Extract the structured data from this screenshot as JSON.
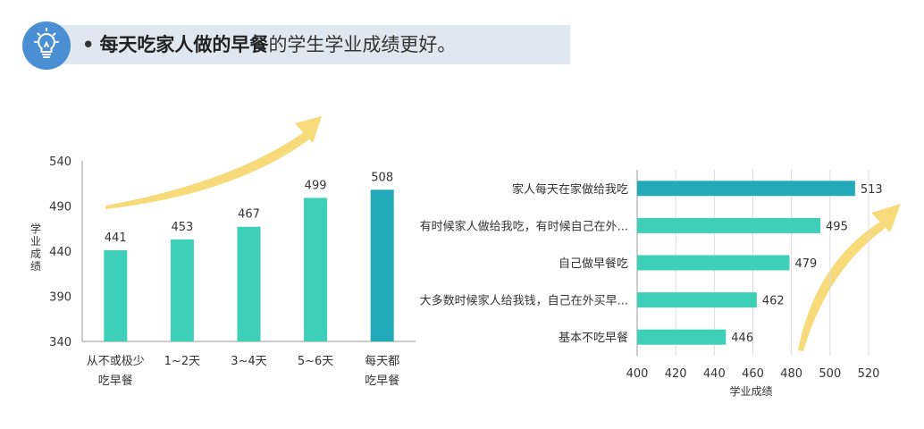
{
  "header": {
    "bullet": "•",
    "emphasis": "每天吃家人做的早餐",
    "rest": "的学生学业成绩更好。",
    "icon": "lightbulb-icon"
  },
  "colors": {
    "bar": "#3ecfb9",
    "bar_highlight": "#22aab8",
    "arrow": "#f6d66c",
    "banner": "#dfe8f1",
    "icon_circle": "#4a8fd4"
  },
  "chart_data": [
    {
      "type": "bar",
      "orientation": "vertical",
      "categories": [
        [
          "从不或极少",
          "吃早餐"
        ],
        [
          "1~2天"
        ],
        [
          "3~4天"
        ],
        [
          "5~6天"
        ],
        [
          "每天都",
          "吃早餐"
        ]
      ],
      "values": [
        441,
        453,
        467,
        499,
        508
      ],
      "highlight_index": 4,
      "ylabel": "学业成绩",
      "ylim": [
        340,
        540
      ],
      "yticks": [
        540,
        490,
        440,
        390,
        340
      ],
      "grid": false
    },
    {
      "type": "bar",
      "orientation": "horizontal",
      "categories": [
        "家人每天在家做给我吃",
        "有时候家人做给我吃，有时候自己在外...",
        "自己做早餐吃",
        "大多数时候家人给我钱，自己在外买早...",
        "基本不吃早餐"
      ],
      "values": [
        513,
        495,
        479,
        462,
        446
      ],
      "highlight_index": 0,
      "xlabel": "学业成绩",
      "xlim": [
        400,
        520
      ],
      "xticks": [
        400,
        420,
        440,
        460,
        480,
        500,
        520
      ],
      "grid": true
    }
  ]
}
